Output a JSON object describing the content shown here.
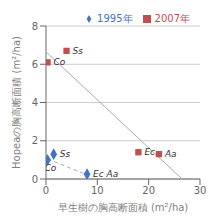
{
  "chart_data": {
    "type": "scatter",
    "xlabel": "早生樹の胸高断面積 (m²/ha)",
    "ylabel": "Hopeaの胸高断面積 (m²/ha)",
    "xlim": [
      0,
      30
    ],
    "ylim": [
      0,
      8
    ],
    "xticks": [
      0,
      10,
      20,
      30
    ],
    "yticks": [
      0,
      2,
      4,
      6,
      8
    ],
    "grid": true,
    "legend": "upper right",
    "series": [
      {
        "type": "line",
        "color": "#aaaaaa",
        "line_style": "solid",
        "x": [
          0.0,
          26.5
        ],
        "values": [
          6.65,
          0.0
        ]
      },
      {
        "type": "line",
        "color": "#aaaaaa",
        "line_style": "dashed",
        "x": [
          0.3,
          8.0
        ],
        "values": [
          1.05,
          0.22
        ]
      },
      {
        "name": "1995年",
        "type": "scatter",
        "color": "#4472C4",
        "marker": "diamond",
        "x": [
          0.3,
          1.5,
          8.0
        ],
        "values": [
          1.0,
          1.3,
          0.25
        ],
        "labels": [
          "Co",
          "Ss",
          "Ec Aa"
        ]
      },
      {
        "name": "2007年",
        "type": "scatter",
        "color": "#C0504D",
        "marker": "square",
        "x": [
          0.3,
          4.0,
          18.0,
          22.0
        ],
        "values": [
          6.1,
          6.7,
          1.4,
          1.3
        ],
        "labels": [
          "Co",
          "Ss",
          "Ec",
          "Aa"
        ]
      }
    ]
  }
}
